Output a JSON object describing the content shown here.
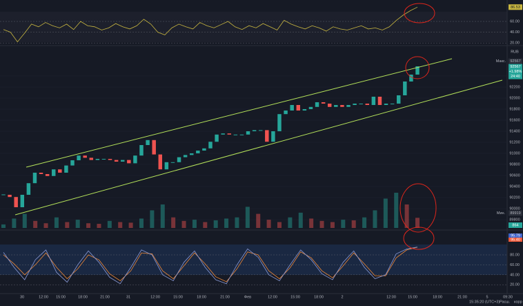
{
  "rsi": {
    "values": [
      45,
      40,
      22,
      38,
      55,
      50,
      58,
      52,
      48,
      55,
      45,
      60,
      52,
      50,
      44,
      48,
      56,
      50,
      46,
      52,
      64,
      55,
      40,
      35,
      48,
      55,
      50,
      46,
      58,
      52,
      48,
      54,
      60,
      50,
      45,
      52,
      48,
      56,
      50,
      44,
      62,
      55,
      50,
      46,
      52,
      48,
      42,
      50,
      46,
      44,
      48,
      52,
      46,
      48,
      44,
      50,
      62,
      72,
      80,
      86.53
    ],
    "ticks": [
      {
        "value": 60,
        "label": "60.00"
      },
      {
        "value": 40,
        "label": "40.00"
      },
      {
        "value": 20,
        "label": "20.00"
      }
    ]
  },
  "price": {
    "currency": "RUB",
    "closes": [
      90250,
      90210,
      90025,
      90250,
      90460,
      90650,
      90625,
      90590,
      90710,
      90650,
      90780,
      90875,
      90960,
      90920,
      90880,
      90900,
      90900,
      90880,
      90850,
      90880,
      90820,
      90960,
      91150,
      91240,
      90980,
      90710,
      90840,
      90840,
      90930,
      90970,
      91000,
      91050,
      91090,
      91210,
      91340,
      91360,
      91340,
      91340,
      91340,
      91400,
      91420,
      91420,
      91210,
      91400,
      91710,
      91775,
      91875,
      91775,
      91800,
      91840,
      91925,
      91900,
      91840,
      91875,
      91840,
      91875,
      91900,
      91900,
      91875,
      92025,
      91875,
      91900,
      91900,
      92050,
      92300,
      92425,
      92575
    ],
    "ticks": [
      92400,
      92200,
      92000,
      91800,
      91600,
      91400,
      91200,
      91000,
      90800,
      90600,
      90400,
      90200,
      90000,
      89800
    ],
    "max_label": "Макс.",
    "max_value": 92567,
    "last": {
      "value": 92567,
      "change": "+1.98%",
      "countdown": "24:40"
    },
    "min_label": "Мин.",
    "min_value": 89919
  },
  "volume": {
    "values": [
      300,
      800,
      1200,
      600,
      400,
      900,
      500,
      700,
      400,
      350,
      600,
      500,
      450,
      800,
      1500,
      2000,
      900,
      600,
      700,
      500,
      650,
      800,
      900,
      1800,
      1200,
      700,
      500,
      900,
      1300,
      800,
      600,
      500,
      700,
      650,
      900,
      1500,
      2500,
      3000,
      2000,
      864
    ]
  },
  "stoch": {
    "k": [
      85,
      55,
      30,
      70,
      90,
      45,
      25,
      60,
      88,
      65,
      35,
      22,
      55,
      90,
      80,
      40,
      28,
      65,
      88,
      55,
      30,
      22,
      60,
      92,
      75,
      40,
      28,
      60,
      90,
      70,
      42,
      30,
      65,
      88,
      55,
      32,
      40,
      82,
      92,
      95.79
    ],
    "d": [
      80,
      62,
      40,
      60,
      84,
      55,
      32,
      52,
      80,
      70,
      42,
      28,
      48,
      84,
      82,
      48,
      32,
      58,
      84,
      62,
      36,
      26,
      52,
      86,
      80,
      48,
      32,
      54,
      86,
      74,
      48,
      34,
      58,
      84,
      62,
      38,
      38,
      74,
      90,
      95.4
    ],
    "last_labels": [
      {
        "value": 95.79,
        "label": "95.79"
      },
      {
        "value": 95.4,
        "label": "95.40"
      }
    ],
    "ticks": [
      {
        "value": 80,
        "label": "80.00"
      },
      {
        "value": 60,
        "label": "60.00"
      },
      {
        "value": 40,
        "label": "40.00"
      },
      {
        "value": 20,
        "label": "20.00"
      }
    ]
  },
  "time_axis": [
    "30",
    "12:00",
    "15:00",
    "18:00",
    "21:00",
    "31",
    "12:00",
    "15:00",
    "18:00",
    "21:00",
    "Фев",
    "12:00",
    "15:00",
    "18:00",
    "2",
    "12:00",
    "15:00",
    "18:00",
    "21:00",
    "5",
    "09:30"
  ],
  "status": {
    "clock": "15:35:20 (UTC+3)",
    "extend": "Расш.",
    "corr": "корр"
  }
}
